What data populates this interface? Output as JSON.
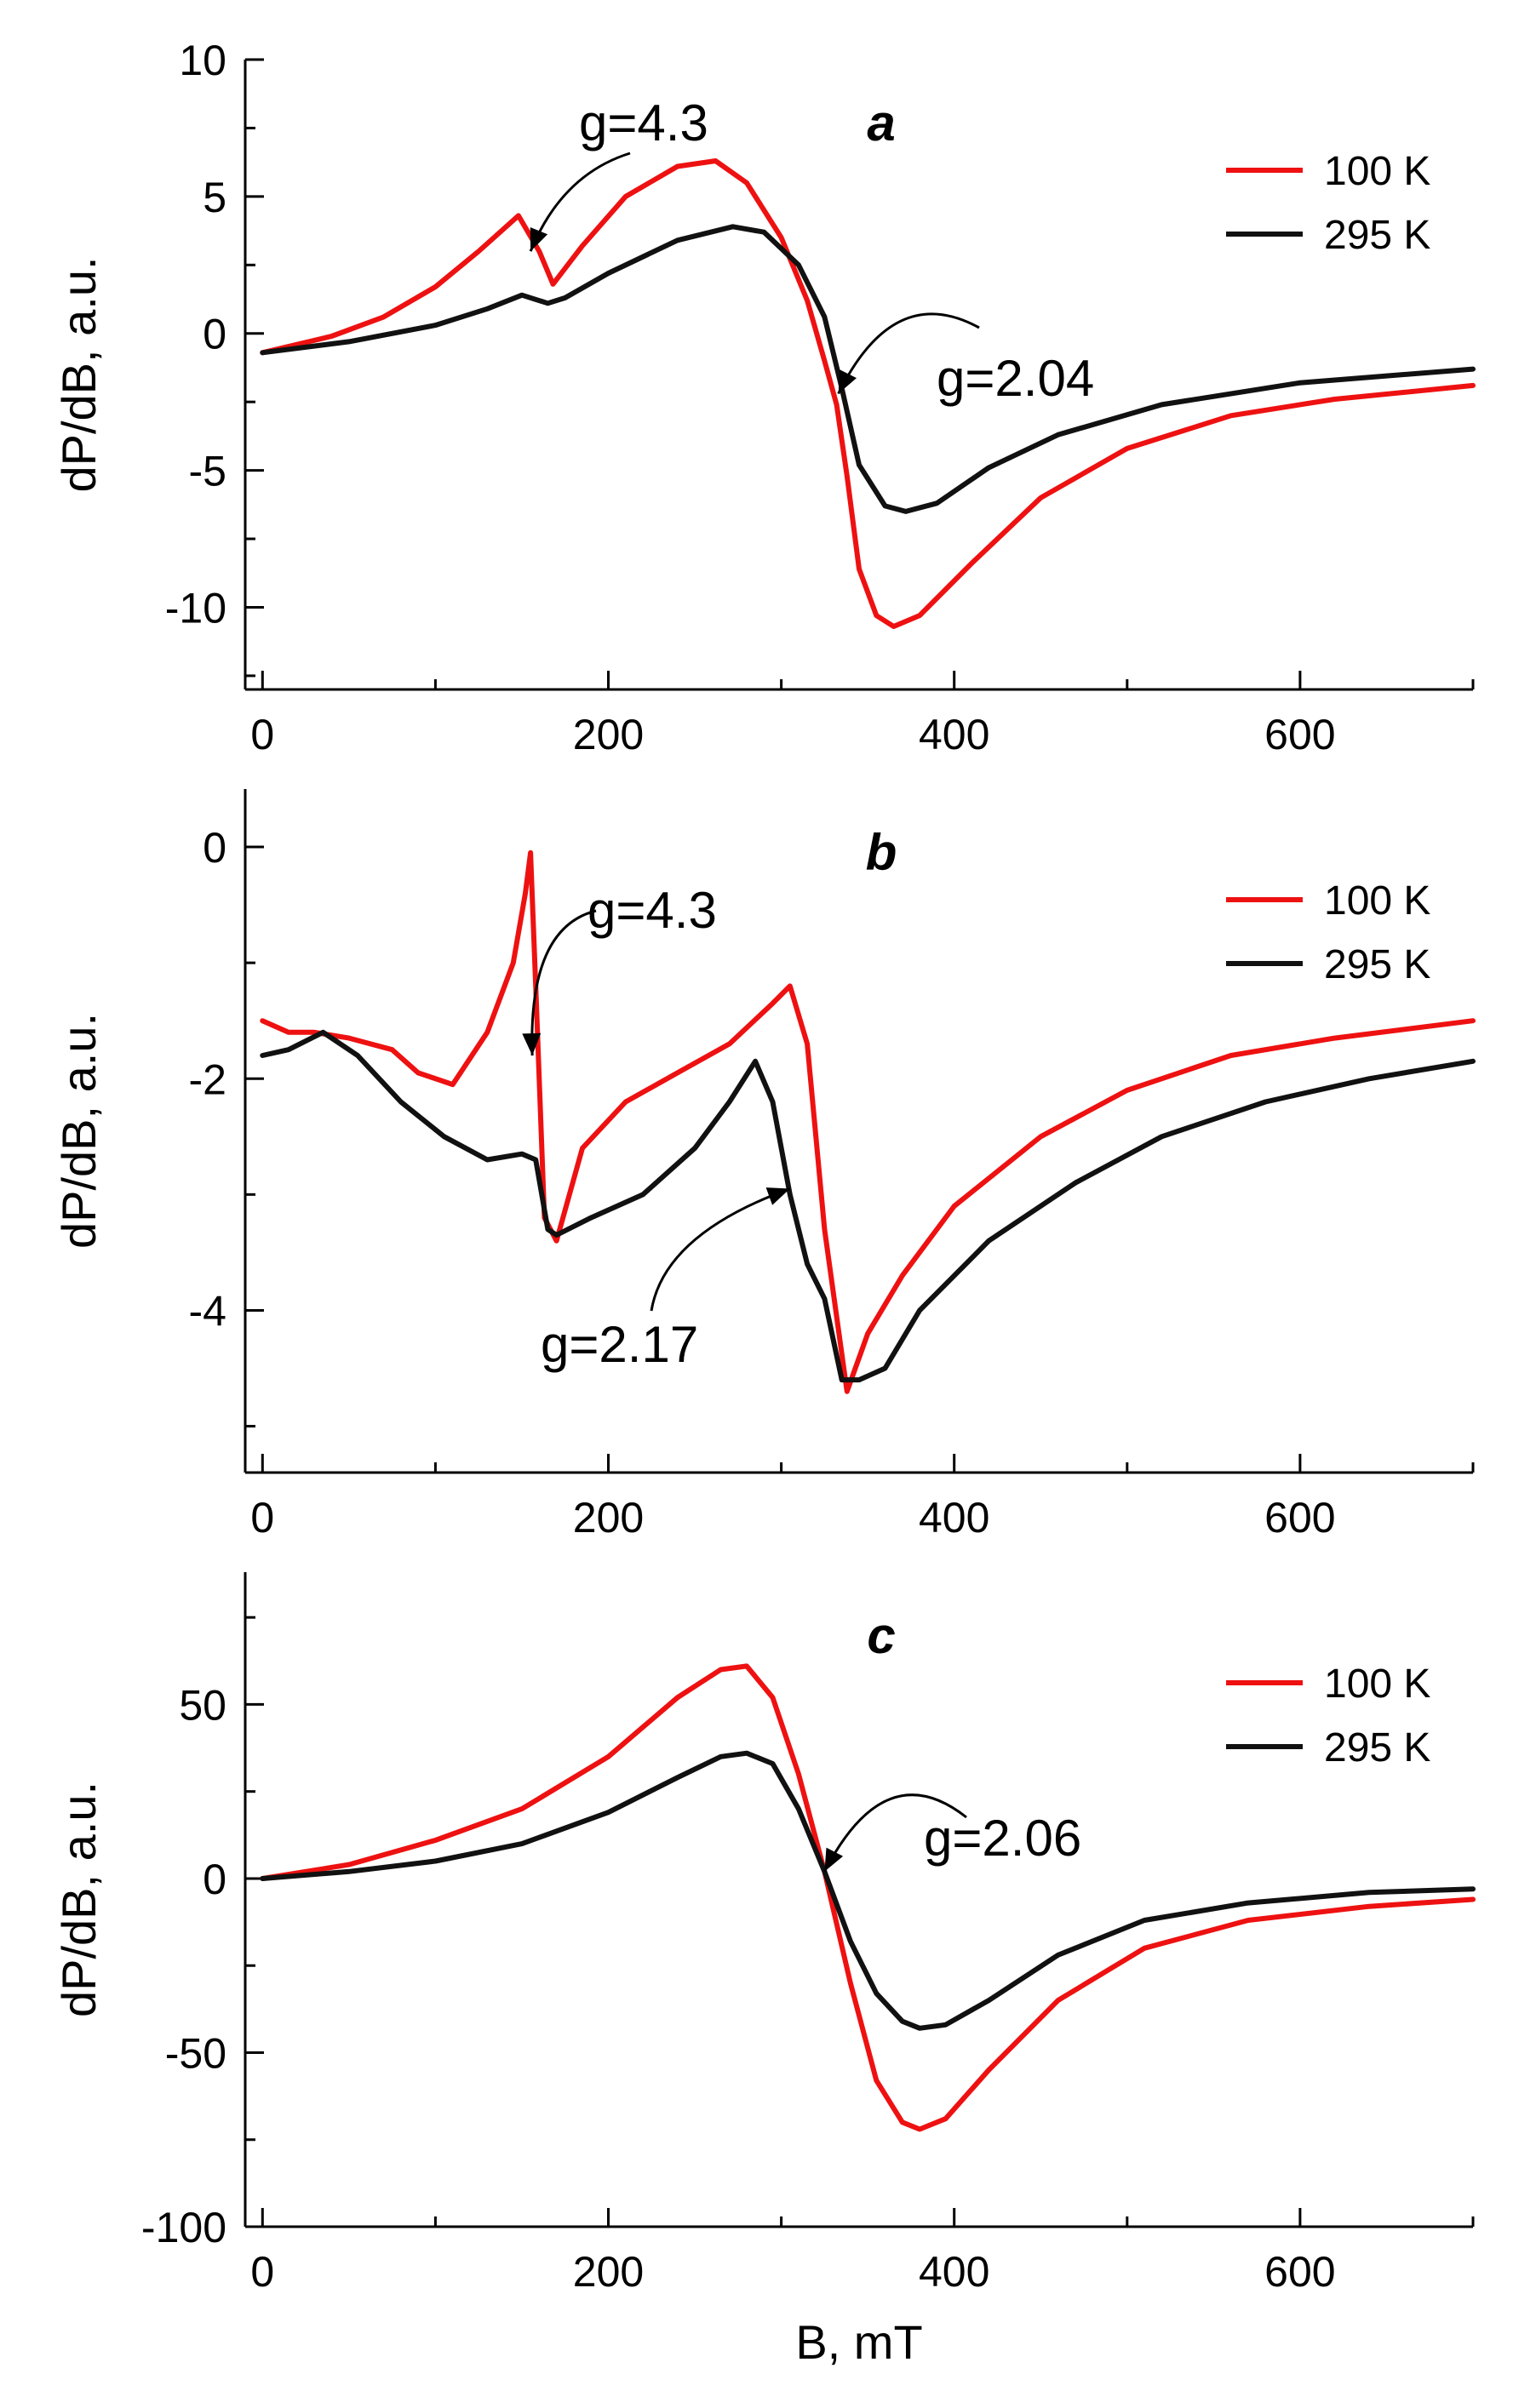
{
  "chart_data": [
    {
      "type": "line",
      "panel_label": "a",
      "xlabel": "B, mT",
      "ylabel": "dP/dB, a.u.",
      "xlim": [
        -10,
        700
      ],
      "ylim": [
        -13,
        10
      ],
      "xticks": [
        0,
        200,
        400,
        600
      ],
      "yticks": [
        10,
        5,
        0,
        -5,
        -10
      ],
      "x_tick_labels": [
        "0",
        "200",
        "400",
        "600"
      ],
      "y_tick_labels": [
        "10",
        "5",
        "0",
        "-5",
        "-10"
      ],
      "legend_position": "top-right",
      "series": [
        {
          "name": "100 K",
          "color": "#ee1111",
          "x": [
            0,
            40,
            70,
            100,
            125,
            148,
            160,
            168,
            185,
            210,
            240,
            262,
            280,
            300,
            315,
            325,
            332,
            338,
            345,
            355,
            365,
            380,
            410,
            450,
            500,
            560,
            620,
            700
          ],
          "y": [
            -0.7,
            -0.1,
            0.6,
            1.7,
            3.0,
            4.3,
            3.0,
            1.8,
            3.2,
            5.0,
            6.1,
            6.3,
            5.5,
            3.5,
            1.2,
            -1.0,
            -2.6,
            -5.2,
            -8.6,
            -10.3,
            -10.7,
            -10.3,
            -8.4,
            -6.0,
            -4.2,
            -3.0,
            -2.4,
            -1.9
          ]
        },
        {
          "name": "295 K",
          "color": "#111111",
          "x": [
            0,
            50,
            100,
            130,
            150,
            165,
            175,
            200,
            240,
            272,
            290,
            310,
            325,
            335,
            345,
            360,
            372,
            390,
            420,
            460,
            520,
            600,
            700
          ],
          "y": [
            -0.7,
            -0.3,
            0.3,
            0.9,
            1.4,
            1.1,
            1.3,
            2.2,
            3.4,
            3.9,
            3.7,
            2.5,
            0.6,
            -2.0,
            -4.8,
            -6.3,
            -6.5,
            -6.2,
            -4.9,
            -3.7,
            -2.6,
            -1.8,
            -1.3
          ]
        }
      ],
      "annotations": [
        {
          "text": "g=4.3",
          "x": 155,
          "y": 3.0
        },
        {
          "text": "g=2.04",
          "x": 333,
          "y": -2.2
        }
      ]
    },
    {
      "type": "line",
      "panel_label": "b",
      "xlabel": "B, mT",
      "ylabel": "dP/dB, a.u.",
      "xlim": [
        -10,
        700
      ],
      "ylim": [
        -5.4,
        0.5
      ],
      "xticks": [
        0,
        200,
        400,
        600
      ],
      "yticks": [
        0,
        -2,
        -4
      ],
      "x_tick_labels": [
        "0",
        "200",
        "400",
        "600"
      ],
      "y_tick_labels": [
        "0",
        "-2",
        "-4"
      ],
      "legend_position": "top-right",
      "series": [
        {
          "name": "100 K",
          "color": "#ee1111",
          "x": [
            0,
            15,
            30,
            50,
            75,
            90,
            110,
            130,
            145,
            152,
            155,
            158,
            163,
            170,
            185,
            210,
            240,
            270,
            295,
            305,
            315,
            325,
            338,
            350,
            370,
            400,
            450,
            500,
            560,
            620,
            700
          ],
          "y": [
            -1.5,
            -1.6,
            -1.6,
            -1.65,
            -1.75,
            -1.95,
            -2.05,
            -1.6,
            -1.0,
            -0.4,
            -0.05,
            -1.2,
            -3.2,
            -3.4,
            -2.6,
            -2.2,
            -1.95,
            -1.7,
            -1.35,
            -1.2,
            -1.7,
            -3.3,
            -4.7,
            -4.2,
            -3.7,
            -3.1,
            -2.5,
            -2.1,
            -1.8,
            -1.65,
            -1.5
          ]
        },
        {
          "name": "295 K",
          "color": "#111111",
          "x": [
            0,
            15,
            35,
            55,
            80,
            105,
            130,
            150,
            158,
            165,
            170,
            190,
            220,
            250,
            270,
            285,
            295,
            305,
            315,
            325,
            335,
            345,
            360,
            380,
            420,
            470,
            520,
            580,
            640,
            700
          ],
          "y": [
            -1.8,
            -1.75,
            -1.6,
            -1.8,
            -2.2,
            -2.5,
            -2.7,
            -2.65,
            -2.7,
            -3.3,
            -3.35,
            -3.2,
            -3.0,
            -2.6,
            -2.2,
            -1.85,
            -2.2,
            -3.0,
            -3.6,
            -3.9,
            -4.6,
            -4.6,
            -4.5,
            -4.0,
            -3.4,
            -2.9,
            -2.5,
            -2.2,
            -2.0,
            -1.85
          ]
        }
      ],
      "annotations": [
        {
          "text": "g=4.3",
          "x": 156,
          "y": -1.8
        },
        {
          "text": "g=2.17",
          "x": 305,
          "y": -2.95
        }
      ]
    },
    {
      "type": "line",
      "panel_label": "c",
      "xlabel": "B, mT",
      "ylabel": "dP/dB, a.u.",
      "xlim": [
        -10,
        700
      ],
      "ylim": [
        -100,
        88
      ],
      "xticks": [
        0,
        200,
        400,
        600
      ],
      "yticks": [
        50,
        0,
        -50,
        -100
      ],
      "x_tick_labels": [
        "0",
        "200",
        "400",
        "600"
      ],
      "y_tick_labels": [
        "50",
        "0",
        "-50",
        "-100"
      ],
      "legend_position": "top-right",
      "series": [
        {
          "name": "100 K",
          "color": "#ee1111",
          "x": [
            0,
            50,
            100,
            150,
            200,
            240,
            265,
            280,
            295,
            310,
            325,
            340,
            355,
            370,
            380,
            395,
            420,
            460,
            510,
            570,
            640,
            700
          ],
          "y": [
            0,
            4,
            11,
            20,
            35,
            52,
            60,
            61,
            52,
            30,
            2,
            -30,
            -58,
            -70,
            -72,
            -69,
            -55,
            -35,
            -20,
            -12,
            -8,
            -6
          ]
        },
        {
          "name": "295 K",
          "color": "#111111",
          "x": [
            0,
            50,
            100,
            150,
            200,
            240,
            265,
            280,
            295,
            310,
            325,
            340,
            355,
            370,
            380,
            395,
            420,
            460,
            510,
            570,
            640,
            700
          ],
          "y": [
            0,
            2,
            5,
            10,
            19,
            29,
            35,
            36,
            33,
            20,
            2,
            -18,
            -33,
            -41,
            -43,
            -42,
            -35,
            -22,
            -12,
            -7,
            -4,
            -3
          ]
        }
      ],
      "annotations": [
        {
          "text": "g=2.06",
          "x": 325,
          "y": 2
        }
      ]
    }
  ]
}
